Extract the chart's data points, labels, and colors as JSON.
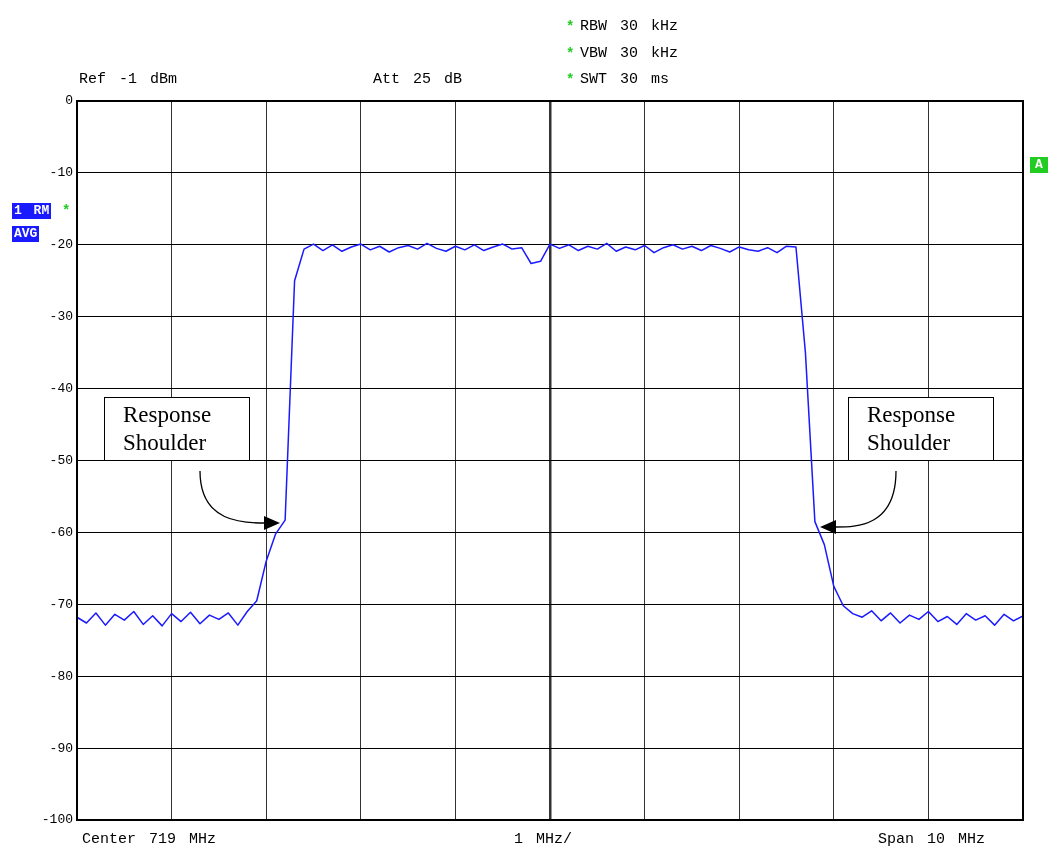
{
  "chart_data": {
    "type": "line",
    "categories": [
      null,
      null,
      null,
      null,
      null,
      null,
      null,
      null,
      null,
      null,
      null,
      null,
      null,
      null,
      null,
      null,
      null,
      null,
      null,
      null,
      null,
      null,
      null,
      null,
      null,
      null,
      null,
      null,
      null,
      null,
      null,
      null,
      null,
      null,
      null,
      null,
      null,
      null,
      null,
      null,
      null,
      null,
      null,
      null,
      null,
      null,
      null,
      null,
      null,
      null,
      null,
      null,
      null,
      null,
      null,
      null,
      null,
      null,
      null,
      null,
      null,
      null,
      null,
      null,
      null,
      null,
      null,
      null,
      null,
      null,
      null,
      null,
      null,
      null,
      null,
      null,
      null,
      null,
      null,
      null,
      null,
      null,
      null,
      null,
      null,
      null,
      null,
      null,
      null,
      null,
      null,
      null,
      null,
      null,
      null,
      null,
      null,
      null,
      null,
      null,
      null
    ],
    "series": [
      {
        "color": "#1a1aff",
        "values": [
          -71.8,
          -72.6,
          -71.2,
          -72.9,
          -71.4,
          -72.2,
          -71.0,
          -72.8,
          -71.6,
          -73.0,
          -71.3,
          -72.4,
          -71.1,
          -72.7,
          -71.5,
          -72.1,
          -71.2,
          -72.9,
          -71.0,
          -69.5,
          -64.0,
          -60.2,
          -58.3,
          -25.0,
          -20.6,
          -19.9,
          -20.8,
          -20.0,
          -20.9,
          -20.3,
          -19.9,
          -20.7,
          -20.2,
          -21.0,
          -20.4,
          -20.1,
          -20.6,
          -19.8,
          -20.5,
          -20.9,
          -20.2,
          -20.7,
          -20.0,
          -20.8,
          -20.3,
          -19.9,
          -20.6,
          -20.4,
          -22.6,
          -22.3,
          -19.9,
          -20.5,
          -20.0,
          -20.8,
          -20.2,
          -20.6,
          -19.8,
          -20.9,
          -20.3,
          -20.7,
          -20.1,
          -21.1,
          -20.4,
          -20.0,
          -20.6,
          -20.2,
          -20.8,
          -20.1,
          -20.5,
          -21.0,
          -20.3,
          -20.7,
          -20.9,
          -20.4,
          -21.1,
          -20.2,
          -20.3,
          -35.0,
          -58.5,
          -61.7,
          -67.5,
          -70.2,
          -71.3,
          -71.8,
          -70.9,
          -72.3,
          -71.2,
          -72.6,
          -71.5,
          -72.1,
          -71.0,
          -72.4,
          -71.7,
          -72.8,
          -71.3,
          -72.2,
          -71.6,
          -72.9,
          -71.4,
          -72.3,
          -71.6
        ]
      }
    ],
    "ylim": [
      -100,
      0
    ],
    "yticks": [
      0,
      -10,
      -20,
      -30,
      -40,
      -50,
      -60,
      -70,
      -80,
      -90,
      -100
    ],
    "tick_labels": "y",
    "grid": true,
    "legend": false,
    "marker": "none",
    "line_style": "solid",
    "annotations": [
      "Response Shoulder",
      "Response Shoulder",
      "Ref -1 dBm",
      "Att 25 dB",
      "RBW 30 kHz",
      "VBW 30 kHz",
      "SWT 30 ms",
      "1 RM",
      "AVG",
      "A",
      "Center 719 MHz",
      "1 MHz/",
      "Span 10 MHz",
      "*",
      "*",
      "*",
      "*"
    ]
  }
}
